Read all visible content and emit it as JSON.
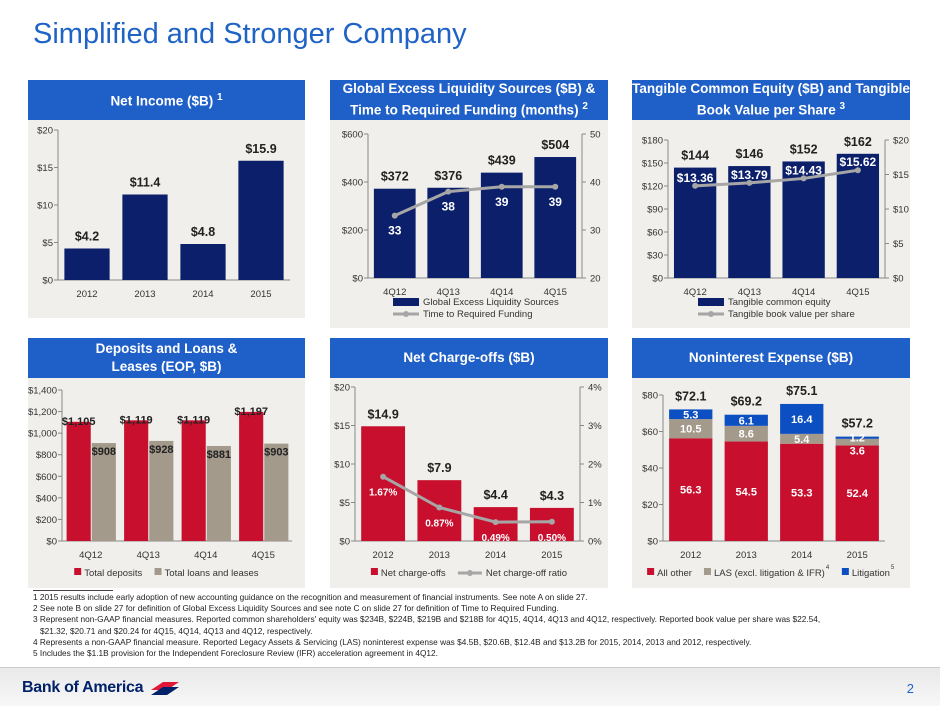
{
  "title": "Simplified and Stronger Company",
  "page_number": "2",
  "brand": "Bank of America",
  "colors": {
    "header": "#1f5fc8",
    "navy": "#0c1f6b",
    "red": "#c8102e",
    "tan": "#a39a8b",
    "litigation_blue": "#0b4fc2",
    "line_gray": "#a6a6a6",
    "chart_bg": "#f0efeb"
  },
  "panels": [
    {
      "title": "Net Income ($B)",
      "sup": "1"
    },
    {
      "title": "Global Excess Liquidity Sources ($B) & Time to Required Funding (months)",
      "sup": "2"
    },
    {
      "title": "Tangible Common Equity ($B) and Tangible Book Value per Share",
      "sup": "3"
    },
    {
      "title": "Deposits and Loans & Leases (EOP, $B)",
      "sup": ""
    },
    {
      "title": "Net Charge-offs ($B)",
      "sup": ""
    },
    {
      "title": "Noninterest Expense ($B)",
      "sup": ""
    }
  ],
  "chart_data": [
    {
      "type": "bar",
      "categories": [
        "2012",
        "2013",
        "2014",
        "2015"
      ],
      "ylim": [
        0,
        20
      ],
      "yticks": [
        "$0",
        "$5",
        "$10",
        "$15",
        "$20"
      ],
      "series": [
        {
          "values": [
            4.2,
            11.4,
            4.8,
            15.9
          ],
          "labels": [
            "$4.2",
            "$11.4",
            "$4.8",
            "$15.9"
          ]
        }
      ]
    },
    {
      "type": "bar+line",
      "categories": [
        "4Q12",
        "4Q13",
        "4Q14",
        "4Q15"
      ],
      "ylim": [
        0,
        600
      ],
      "yticks": [
        "$0",
        "$200",
        "$400",
        "$600"
      ],
      "y2lim": [
        20,
        50
      ],
      "y2ticks": [
        "20",
        "30",
        "40",
        "50"
      ],
      "series": [
        {
          "name": "Global Excess Liquidity Sources",
          "values": [
            372,
            376,
            439,
            504
          ],
          "labels": [
            "$372",
            "$376",
            "$439",
            "$504"
          ]
        },
        {
          "name": "Time to Required Funding",
          "values": [
            33,
            38,
            39,
            39
          ],
          "labels": [
            "33",
            "38",
            "39",
            "39"
          ],
          "axis": "right"
        }
      ],
      "legend": "bottom"
    },
    {
      "type": "bar+line",
      "categories": [
        "4Q12",
        "4Q13",
        "4Q14",
        "4Q15"
      ],
      "ylim": [
        0,
        180
      ],
      "yticks": [
        "$0",
        "$30",
        "$60",
        "$90",
        "$120",
        "$150",
        "$180"
      ],
      "y2lim": [
        0,
        20
      ],
      "y2ticks": [
        "$0",
        "$5",
        "$10",
        "$15",
        "$20"
      ],
      "series": [
        {
          "name": "Tangible common equity",
          "values": [
            144,
            146,
            152,
            162
          ],
          "labels": [
            "$144",
            "$146",
            "$152",
            "$162"
          ]
        },
        {
          "name": "Tangible book value per share",
          "values": [
            13.36,
            13.79,
            14.43,
            15.62
          ],
          "labels": [
            "$13.36",
            "$13.79",
            "$14.43",
            "$15.62"
          ],
          "axis": "right"
        }
      ],
      "legend": "bottom"
    },
    {
      "type": "grouped-bar",
      "categories": [
        "4Q12",
        "4Q13",
        "4Q14",
        "4Q15"
      ],
      "ylim": [
        0,
        1400
      ],
      "yticks": [
        "$0",
        "$200",
        "$400",
        "$600",
        "$800",
        "$1,000",
        "$1,200",
        "$1,400"
      ],
      "series": [
        {
          "name": "Total deposits",
          "values": [
            1105,
            1119,
            1119,
            1197
          ],
          "labels": [
            "$1,105",
            "$1,119",
            "$1,119",
            "$1,197"
          ]
        },
        {
          "name": "Total loans and leases",
          "values": [
            908,
            928,
            881,
            903
          ],
          "labels": [
            "$908",
            "$928",
            "$881",
            "$903"
          ]
        }
      ],
      "legend": "bottom"
    },
    {
      "type": "bar+line",
      "categories": [
        "2012",
        "2013",
        "2014",
        "2015"
      ],
      "ylim": [
        0,
        20
      ],
      "yticks": [
        "$0",
        "$5",
        "$10",
        "$15",
        "$20"
      ],
      "y2lim": [
        0,
        4
      ],
      "y2ticks": [
        "0%",
        "1%",
        "2%",
        "3%",
        "4%"
      ],
      "series": [
        {
          "name": "Net charge-offs",
          "values": [
            14.9,
            7.9,
            4.4,
            4.3
          ],
          "labels": [
            "$14.9",
            "$7.9",
            "$4.4",
            "$4.3"
          ]
        },
        {
          "name": "Net charge-off ratio",
          "values": [
            1.67,
            0.87,
            0.49,
            0.5
          ],
          "labels": [
            "1.67%",
            "0.87%",
            "0.49%",
            "0.50%"
          ],
          "axis": "right"
        }
      ],
      "legend": "bottom"
    },
    {
      "type": "stacked-bar",
      "categories": [
        "2012",
        "2013",
        "2014",
        "2015"
      ],
      "ylim": [
        0,
        80
      ],
      "yticks": [
        "$0",
        "$20",
        "$40",
        "$60",
        "$80"
      ],
      "totals": [
        "$72.1",
        "$69.2",
        "$75.1",
        "$57.2"
      ],
      "series": [
        {
          "name": "All other",
          "values": [
            56.3,
            54.5,
            53.3,
            52.4
          ],
          "labels": [
            "56.3",
            "54.5",
            "53.3",
            "52.4"
          ]
        },
        {
          "name": "LAS (excl. litigation & IFR)",
          "sup": "4",
          "values": [
            10.5,
            8.6,
            5.4,
            3.6
          ],
          "labels": [
            "10.5",
            "8.6",
            "5.4",
            "3.6"
          ]
        },
        {
          "name": "Litigation",
          "sup": "5",
          "values": [
            5.3,
            6.1,
            16.4,
            1.2
          ],
          "labels": [
            "5.3",
            "6.1",
            "16.4",
            "1.2"
          ]
        }
      ],
      "legend": "bottom"
    }
  ],
  "footnotes": [
    "1 2015 results include early adoption of new accounting guidance on the recognition and measurement of financial instruments. See note A on slide 27.",
    "2 See note B on slide 27 for definition of Global Excess Liquidity Sources and see note C on slide 27 for definition of Time to Required Funding.",
    "3 Represent non-GAAP financial measures. Reported common shareholders' equity was $234B, $224B, $219B and $218B for 4Q15, 4Q14, 4Q13 and 4Q12, respectively. Reported book value per share was $22.54,",
    "$21.32, $20.71 and $20.24 for 4Q15, 4Q14, 4Q13 and 4Q12, respectively.",
    "4 Represents a non-GAAP financial measure. Reported Legacy Assets & Servicing (LAS) noninterest expense was $4.5B, $20.6B, $12.4B and $13.2B for 2015, 2014, 2013 and 2012, respectively.",
    "5 Includes the $1.1B provision for the Independent Foreclosure Review (IFR) acceleration agreement in 4Q12."
  ]
}
